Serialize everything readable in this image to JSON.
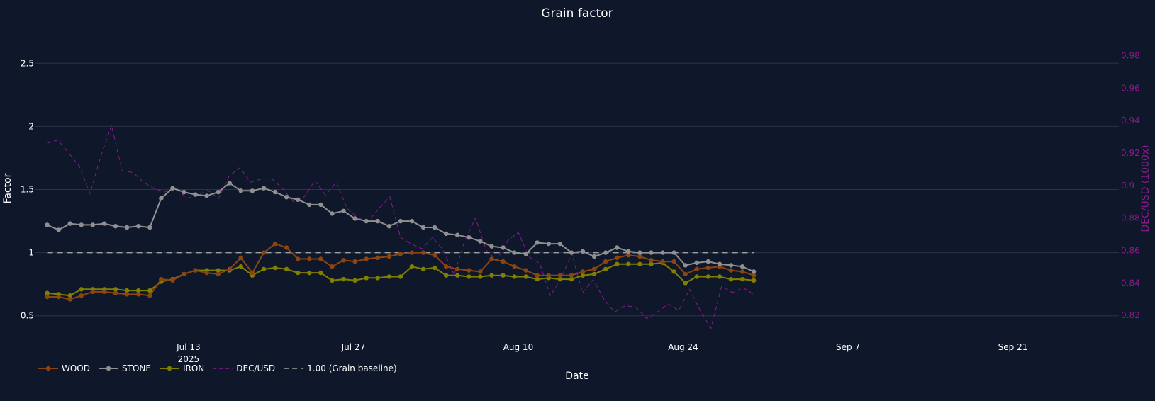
{
  "chart_data": {
    "type": "line",
    "title": "Grain factor",
    "xlabel": "Date",
    "ylabel": "Factor",
    "y2label": "DEC/USD (1000x)",
    "x_start": "2025-07-01",
    "x_end": "2025-08-30",
    "xlim": [
      "2025-06-30",
      "2025-09-30"
    ],
    "ylim": [
      0.42,
      2.58
    ],
    "y2lim": [
      0.8135,
      0.9815
    ],
    "x_ticks": [
      {
        "date": "2025-07-13",
        "label": "Jul 13",
        "sub": "2025"
      },
      {
        "date": "2025-07-27",
        "label": "Jul 27",
        "sub": ""
      },
      {
        "date": "2025-08-10",
        "label": "Aug 10",
        "sub": ""
      },
      {
        "date": "2025-08-24",
        "label": "Aug 24",
        "sub": ""
      },
      {
        "date": "2025-09-07",
        "label": "Sep 7",
        "sub": ""
      },
      {
        "date": "2025-09-21",
        "label": "Sep 21",
        "sub": ""
      }
    ],
    "y_ticks": [
      {
        "value": 0.5,
        "label": "0.5"
      },
      {
        "value": 1,
        "label": "1"
      },
      {
        "value": 1.5,
        "label": "1.5"
      },
      {
        "value": 2,
        "label": "2"
      },
      {
        "value": 2.5,
        "label": "2.5"
      }
    ],
    "y2_ticks": [
      {
        "value": 0.82,
        "label": "0.82"
      },
      {
        "value": 0.84,
        "label": "0.84"
      },
      {
        "value": 0.86,
        "label": "0.86"
      },
      {
        "value": 0.88,
        "label": "0.88"
      },
      {
        "value": 0.9,
        "label": "0.9"
      },
      {
        "value": 0.92,
        "label": "0.92"
      },
      {
        "value": 0.94,
        "label": "0.94"
      },
      {
        "value": 0.96,
        "label": "0.96"
      },
      {
        "value": 0.98,
        "label": "0.98"
      }
    ],
    "series": [
      {
        "name": "WOOD",
        "color": "#8b4513",
        "axis": "y",
        "style": "lines+markers",
        "values": [
          0.65,
          0.65,
          0.63,
          0.66,
          0.69,
          0.69,
          0.68,
          0.67,
          0.67,
          0.66,
          0.79,
          0.78,
          0.83,
          0.86,
          0.84,
          0.83,
          0.87,
          0.96,
          0.84,
          1.0,
          1.07,
          1.04,
          0.95,
          0.95,
          0.95,
          0.89,
          0.94,
          0.93,
          0.95,
          0.96,
          0.97,
          0.99,
          1.0,
          1.0,
          0.98,
          0.89,
          0.87,
          0.86,
          0.85,
          0.95,
          0.93,
          0.89,
          0.86,
          0.82,
          0.82,
          0.82,
          0.82,
          0.85,
          0.87,
          0.93,
          0.96,
          0.98,
          0.97,
          0.94,
          0.93,
          0.93,
          0.83,
          0.87,
          0.88,
          0.89,
          0.86,
          0.85,
          0.82
        ]
      },
      {
        "name": "STONE",
        "color": "#909090",
        "axis": "y",
        "style": "lines+markers",
        "values": [
          1.22,
          1.18,
          1.23,
          1.22,
          1.22,
          1.23,
          1.21,
          1.2,
          1.21,
          1.2,
          1.43,
          1.51,
          1.48,
          1.46,
          1.45,
          1.48,
          1.55,
          1.49,
          1.49,
          1.51,
          1.48,
          1.44,
          1.42,
          1.38,
          1.38,
          1.31,
          1.33,
          1.27,
          1.25,
          1.25,
          1.21,
          1.25,
          1.25,
          1.2,
          1.2,
          1.15,
          1.14,
          1.12,
          1.09,
          1.05,
          1.04,
          1.0,
          0.99,
          1.08,
          1.07,
          1.07,
          1.0,
          1.01,
          0.97,
          1.0,
          1.04,
          1.01,
          1.0,
          1.0,
          1.0,
          1.0,
          0.9,
          0.92,
          0.93,
          0.91,
          0.9,
          0.89,
          0.85
        ]
      },
      {
        "name": "IRON",
        "color": "#808000",
        "axis": "y",
        "style": "lines+markers",
        "values": [
          0.68,
          0.67,
          0.66,
          0.71,
          0.71,
          0.71,
          0.71,
          0.7,
          0.7,
          0.7,
          0.77,
          0.79,
          0.83,
          0.86,
          0.86,
          0.86,
          0.86,
          0.89,
          0.82,
          0.87,
          0.88,
          0.87,
          0.84,
          0.84,
          0.84,
          0.78,
          0.79,
          0.78,
          0.8,
          0.8,
          0.81,
          0.81,
          0.89,
          0.87,
          0.88,
          0.82,
          0.82,
          0.81,
          0.81,
          0.82,
          0.82,
          0.81,
          0.81,
          0.79,
          0.8,
          0.79,
          0.79,
          0.82,
          0.83,
          0.87,
          0.91,
          0.91,
          0.91,
          0.91,
          0.92,
          0.85,
          0.76,
          0.81,
          0.81,
          0.81,
          0.79,
          0.79,
          0.78
        ]
      },
      {
        "name": "DEC/USD",
        "color": "#8b1a8b",
        "axis": "y2",
        "style": "dash",
        "values": [
          0.926,
          0.928,
          0.92,
          0.912,
          0.895,
          0.918,
          0.937,
          0.909,
          0.908,
          0.902,
          0.898,
          0.896,
          0.899,
          0.892,
          0.894,
          0.897,
          0.892,
          0.906,
          0.911,
          0.902,
          0.904,
          0.904,
          0.898,
          0.89,
          0.893,
          0.903,
          0.894,
          0.902,
          0.886,
          0.88,
          0.878,
          0.886,
          0.893,
          0.868,
          0.864,
          0.861,
          0.868,
          0.86,
          0.845,
          0.866,
          0.88,
          0.86,
          0.854,
          0.866,
          0.871,
          0.856,
          0.852,
          0.832,
          0.843,
          0.858,
          0.834,
          0.842,
          0.83,
          0.822,
          0.826,
          0.825,
          0.818,
          0.822,
          0.827,
          0.823,
          0.836,
          0.823,
          0.812,
          0.838,
          0.834,
          0.837,
          0.833
        ]
      },
      {
        "name": "1.00 (Grain baseline)",
        "color": "#a0a0a0",
        "axis": "y",
        "style": "dash",
        "values": [
          1.0,
          1.0
        ]
      }
    ],
    "grid": true,
    "legend_position": "bottom-left"
  }
}
